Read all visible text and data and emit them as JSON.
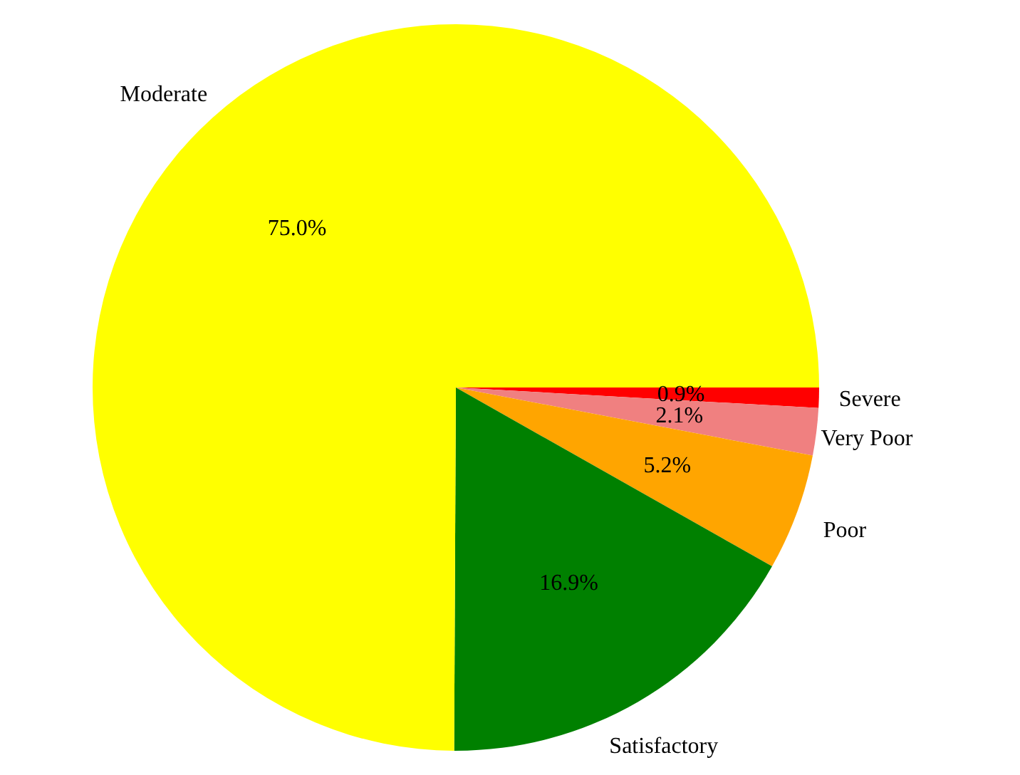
{
  "chart_data": {
    "type": "pie",
    "categories": [
      "Severe",
      "Very Poor",
      "Poor",
      "Satisfactory",
      "Moderate"
    ],
    "values": [
      0.9,
      2.1,
      5.2,
      16.9,
      75.0
    ],
    "colors": [
      "#ff0000",
      "#f08080",
      "#ffa500",
      "#008000",
      "#ffff00"
    ],
    "value_labels": [
      "0.9%",
      "2.1%",
      "5.2%",
      "16.9%",
      "75.0%"
    ]
  }
}
